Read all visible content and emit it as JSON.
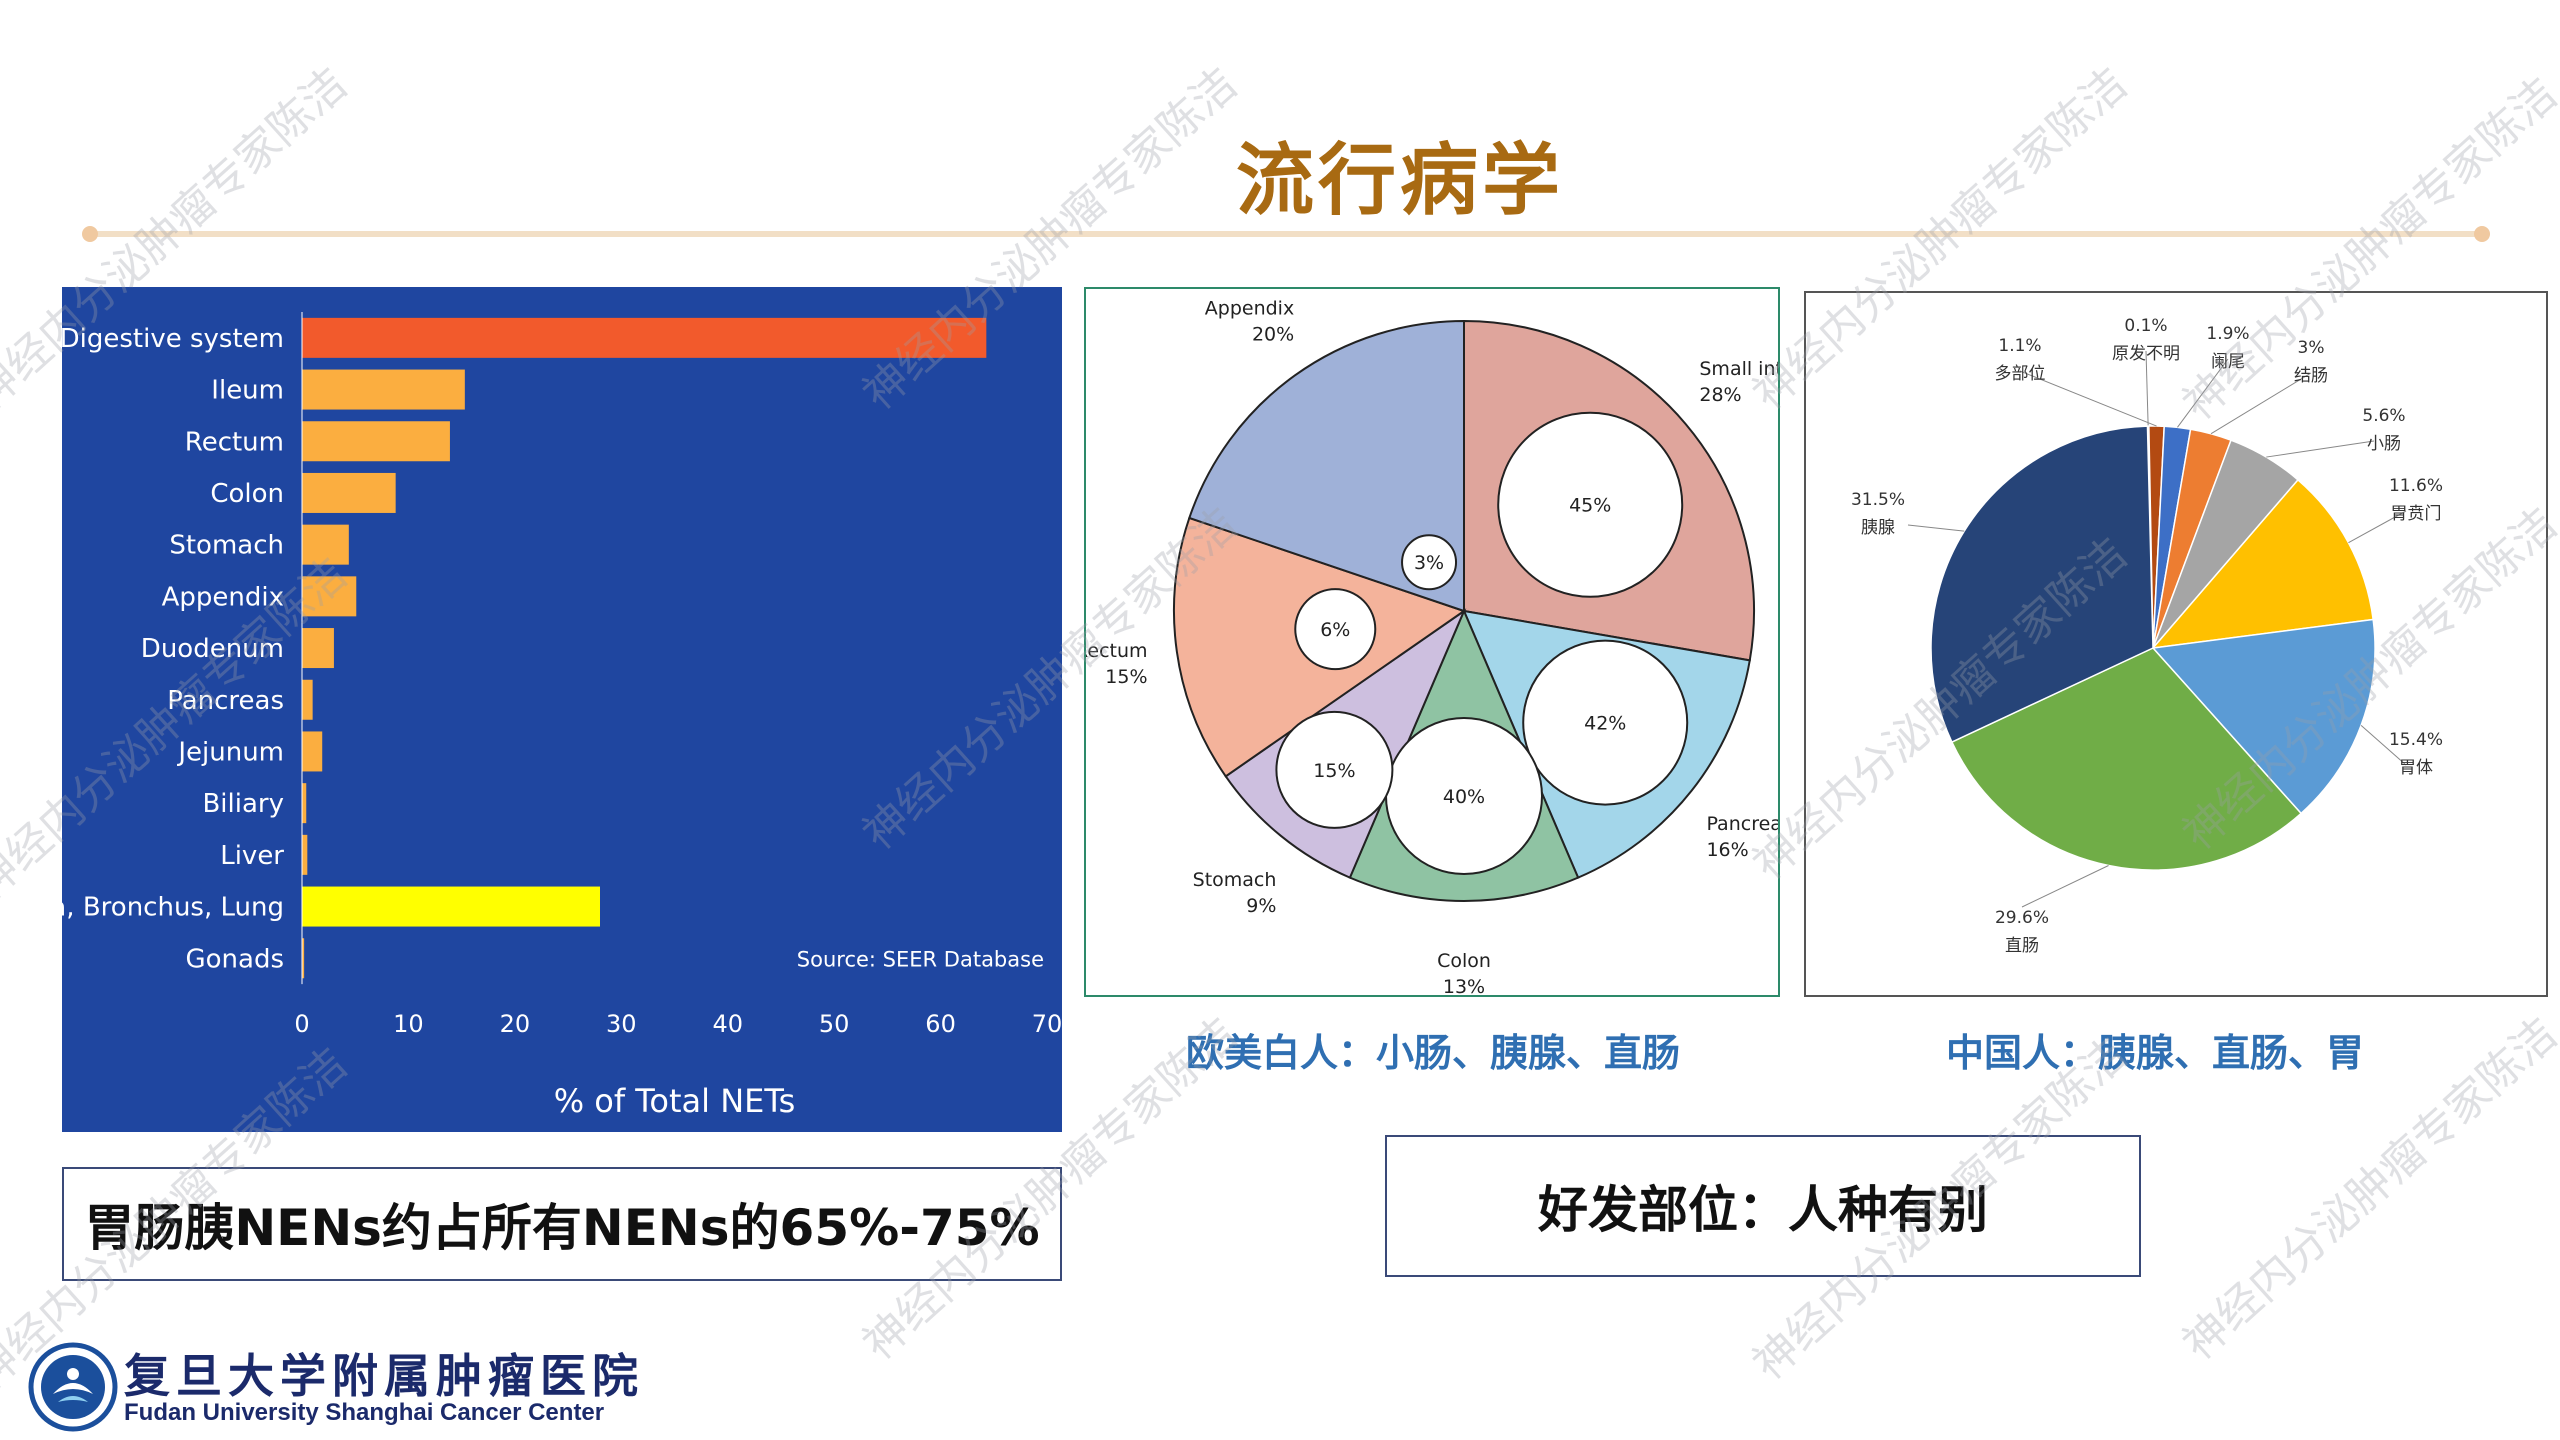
{
  "slide": {
    "title": "流行病学",
    "box_left": "胃肠胰NENs约占所有NENs的65%-75%",
    "box_right": "好发部位：人种有别",
    "caption_western": "欧美白人：小肠、胰腺、直肠",
    "caption_china": "中国人：胰腺、直肠、胃"
  },
  "logo": {
    "name_cn": "复旦大学附属肿瘤医院",
    "name_en": "Fudan University Shanghai Cancer Center"
  },
  "watermark": "神经内分泌肿瘤专家陈洁",
  "colors": {
    "title": "#a86a12",
    "bar_panel_bg": "#1f46a0",
    "bar_digestive": "#f25a2c",
    "bar_sites": "#fbae40",
    "bar_lung": "#ffff00",
    "caption": "#2f6fb2"
  },
  "chart_data": [
    {
      "type": "bar",
      "orientation": "horizontal",
      "categories": [
        "Digestive system",
        "Ileum",
        "Rectum",
        "Colon",
        "Stomach",
        "Appendix",
        "Duodenum",
        "Pancreas",
        "Jejunum",
        "Biliary",
        "Liver",
        "Trachea, Bronchus, Lung",
        "Gonads"
      ],
      "values": [
        64.3,
        15.3,
        13.9,
        8.8,
        4.4,
        5.1,
        3.0,
        1.0,
        1.9,
        0.4,
        0.5,
        28.0,
        0.2
      ],
      "xlabel": "% of Total NETs",
      "ylabel": "",
      "xlim": [
        0,
        70
      ],
      "xticks": [
        0,
        10,
        20,
        30,
        40,
        50,
        60,
        70
      ],
      "annotation": "Source: SEER Database",
      "grid": false
    },
    {
      "type": "pie",
      "slices": [
        {
          "label": "Small intestine",
          "value": 28,
          "display": "28%",
          "color": "#dfa59c",
          "inner": "45%"
        },
        {
          "label": "Pancreas",
          "value": 16,
          "display": "16%",
          "color": "#a3d6ea",
          "inner": "42%"
        },
        {
          "label": "Colon",
          "value": 13,
          "display": "13%",
          "color": "#8fc3a3",
          "inner": "40%"
        },
        {
          "label": "Stomach",
          "value": 9,
          "display": "9%",
          "color": "#cdbfdf",
          "inner": "15%"
        },
        {
          "label": "Rectum",
          "value": 15,
          "display": "15%",
          "color": "#f4b39b",
          "inner": "6%"
        },
        {
          "label": "Appendix",
          "value": 20,
          "display": "20%",
          "color": "#9fb1d8",
          "inner": "3%"
        }
      ]
    },
    {
      "type": "pie",
      "slices": [
        {
          "label": "原发不明",
          "value": 0.1,
          "display": "0.1%",
          "color": "#7b3f1a"
        },
        {
          "label": "多部位",
          "value": 1.1,
          "display": "1.1%",
          "color": "#b34a12"
        },
        {
          "label": "阑尾",
          "value": 1.9,
          "display": "1.9%",
          "color": "#3d6fc6"
        },
        {
          "label": "结肠",
          "value": 3,
          "display": "3%",
          "color": "#ed7d31"
        },
        {
          "label": "小肠",
          "value": 5.6,
          "display": "5.6%",
          "color": "#a5a5a5"
        },
        {
          "label": "胃贲门",
          "value": 11.6,
          "display": "11.6%",
          "color": "#ffc000"
        },
        {
          "label": "胃体",
          "value": 15.4,
          "display": "15.4%",
          "color": "#5b9bd5"
        },
        {
          "label": "直肠",
          "value": 29.6,
          "display": "29.6%",
          "color": "#70ad47"
        },
        {
          "label": "胰腺",
          "value": 31.5,
          "display": "31.5%",
          "color": "#264478"
        }
      ]
    }
  ]
}
